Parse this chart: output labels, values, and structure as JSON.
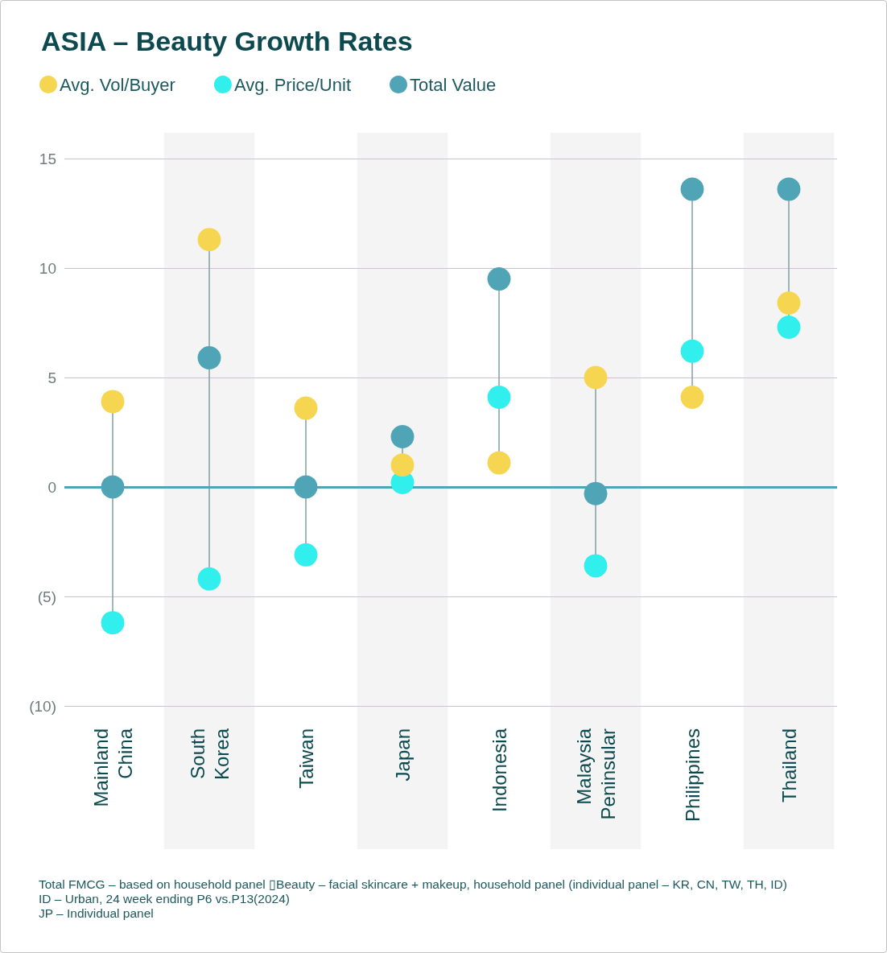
{
  "chart_data": {
    "type": "scatter",
    "title": "ASIA – Beauty Growth Rates",
    "categories": [
      "Mainland China",
      "South Korea",
      "Taiwan",
      "Japan",
      "Indonesia",
      "Malaysia Peninsular",
      "Philippines",
      "Thailand"
    ],
    "series": [
      {
        "name": "Avg. Vol/Buyer",
        "color": "#f6d650",
        "values": [
          3.9,
          11.3,
          3.6,
          1.0,
          1.1,
          5.0,
          4.1,
          8.4
        ]
      },
      {
        "name": "Avg. Price/Unit",
        "color": "#30efec",
        "values": [
          -6.2,
          -4.2,
          -3.1,
          0.2,
          4.1,
          -3.6,
          6.2,
          7.3
        ]
      },
      {
        "name": "Total Value",
        "color": "#4fa4b5",
        "values": [
          0,
          5.9,
          0,
          2.3,
          9.5,
          -0.3,
          13.6,
          13.6
        ]
      }
    ],
    "ylim": [
      -10,
      15
    ],
    "yticks": [
      {
        "value": -10,
        "label": "(10)"
      },
      {
        "value": -5,
        "label": "(5)"
      },
      0,
      5,
      10,
      15
    ],
    "grid": "y",
    "legend": "top left",
    "marker": "circle",
    "ref_lines": [
      {
        "axis": "y",
        "value": 0,
        "color": "#4fa4b5"
      }
    ],
    "bands": [
      {
        "axis": "x",
        "from": "South Korea",
        "to": "South Korea",
        "color": "#f4f4f4"
      },
      {
        "axis": "x",
        "from": "Japan",
        "to": "Japan",
        "color": "#f4f4f4"
      },
      {
        "axis": "x",
        "from": "Malaysia Peninsular",
        "to": "Malaysia Peninsular",
        "color": "#f4f4f4"
      },
      {
        "axis": "x",
        "from": "Thailand",
        "to": "Thailand",
        "color": "#f4f4f4"
      }
    ],
    "annotations": [
      "Total FMCG – based on household panel ▯Beauty – facial skincare + makeup, household panel (individual panel – KR, CN, TW, TH, ID)",
      "ID – Urban, 24 week ending P6 vs.P13(2024)",
      "JP – Individual panel"
    ]
  }
}
